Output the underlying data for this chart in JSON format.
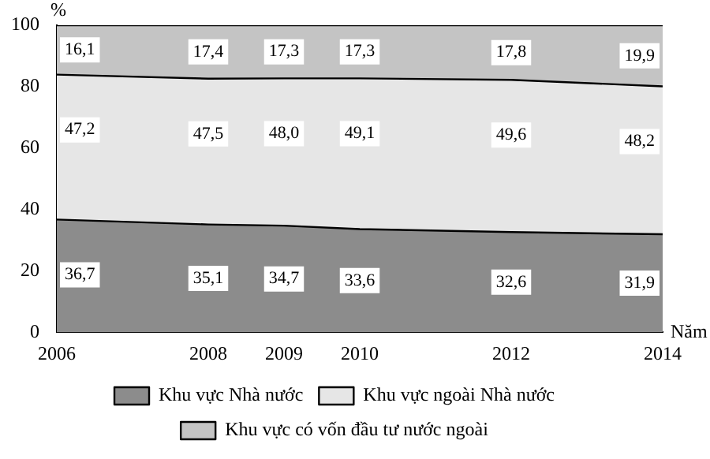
{
  "chart_data": {
    "type": "area",
    "stacked": true,
    "ylabel": "%",
    "xlabel": "Năm",
    "x": [
      2006,
      2008,
      2009,
      2010,
      2012,
      2014
    ],
    "xlim": [
      2006,
      2014
    ],
    "xticks": [
      2006,
      2008,
      2009,
      2010,
      2012,
      2014
    ],
    "ylim": [
      0,
      100
    ],
    "yticks": [
      0,
      20,
      40,
      60,
      80,
      100
    ],
    "grid": false,
    "legend": "bottom",
    "series": [
      {
        "name": "Khu vực Nhà nước",
        "color": "#8c8c8c",
        "values": [
          36.7,
          35.1,
          34.7,
          33.6,
          32.6,
          31.9
        ],
        "value_labels": [
          "36,7",
          "35,1",
          "34,7",
          "33,6",
          "32,6",
          "31,9"
        ]
      },
      {
        "name": "Khu vực ngoài Nhà nước",
        "color": "#e6e6e6",
        "values": [
          47.2,
          47.5,
          48.0,
          49.1,
          49.6,
          48.2
        ],
        "value_labels": [
          "47,2",
          "47,5",
          "48,0",
          "49,1",
          "49,6",
          "48,2"
        ]
      },
      {
        "name": "Khu vực có vốn đầu tư nước ngoài",
        "color": "#c4c4c4",
        "values": [
          16.1,
          17.4,
          17.3,
          17.3,
          17.8,
          19.9
        ],
        "value_labels": [
          "16,1",
          "17,4",
          "17,3",
          "17,3",
          "17,8",
          "19,9"
        ]
      }
    ]
  }
}
